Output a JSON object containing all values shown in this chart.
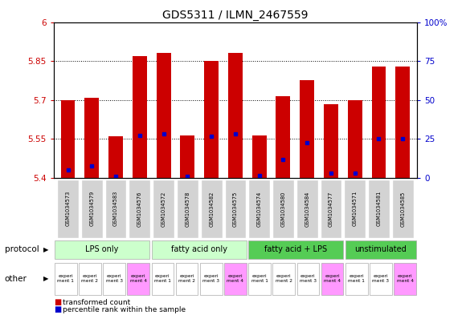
{
  "title": "GDS5311 / ILMN_2467559",
  "samples": [
    "GSM1034573",
    "GSM1034579",
    "GSM1034583",
    "GSM1034576",
    "GSM1034572",
    "GSM1034578",
    "GSM1034582",
    "GSM1034575",
    "GSM1034574",
    "GSM1034580",
    "GSM1034584",
    "GSM1034577",
    "GSM1034571",
    "GSM1034581",
    "GSM1034585"
  ],
  "red_values": [
    5.7,
    5.71,
    5.56,
    5.87,
    5.88,
    5.565,
    5.85,
    5.88,
    5.565,
    5.715,
    5.775,
    5.685,
    5.7,
    5.83,
    5.83
  ],
  "blue_values": [
    5.43,
    5.445,
    5.405,
    5.565,
    5.57,
    5.405,
    5.56,
    5.57,
    5.408,
    5.47,
    5.535,
    5.42,
    5.418,
    5.55,
    5.55
  ],
  "ylim_left": [
    5.4,
    6.0
  ],
  "ylim_right": [
    0,
    100
  ],
  "yticks_left": [
    5.4,
    5.55,
    5.7,
    5.85,
    6.0
  ],
  "yticks_right": [
    0,
    25,
    50,
    75,
    100
  ],
  "ytick_labels_left": [
    "5.4",
    "5.55",
    "5.7",
    "5.85",
    "6"
  ],
  "ytick_labels_right": [
    "0",
    "25",
    "50",
    "75",
    "100%"
  ],
  "groups": [
    {
      "label": "LPS only",
      "indices": [
        0,
        1,
        2,
        3
      ],
      "color": "#ccffcc"
    },
    {
      "label": "fatty acid only",
      "indices": [
        4,
        5,
        6,
        7
      ],
      "color": "#ccffcc"
    },
    {
      "label": "fatty acid + LPS",
      "indices": [
        8,
        9,
        10,
        11
      ],
      "color": "#55cc55"
    },
    {
      "label": "unstimulated",
      "indices": [
        12,
        13,
        14
      ],
      "color": "#55cc55"
    }
  ],
  "experiment_labels": [
    "experi\nment 1",
    "experi\nment 2",
    "experi\nment 3",
    "experi\nment 4",
    "experi\nment 1",
    "experi\nment 2",
    "experi\nment 3",
    "experi\nment 4",
    "experi\nment 1",
    "experi\nment 2",
    "experi\nment 3",
    "experi\nment 4",
    "experi\nment 1",
    "experi\nment 3",
    "experi\nment 4"
  ],
  "experiment_colors": [
    "#ffffff",
    "#ffffff",
    "#ffffff",
    "#ff99ff",
    "#ffffff",
    "#ffffff",
    "#ffffff",
    "#ff99ff",
    "#ffffff",
    "#ffffff",
    "#ffffff",
    "#ff99ff",
    "#ffffff",
    "#ffffff",
    "#ff99ff"
  ],
  "bar_color": "#cc0000",
  "dot_color": "#0000cc",
  "left_tick_color": "#cc0000",
  "right_tick_color": "#0000cc",
  "bar_width": 0.6,
  "legend_red": "transformed count",
  "legend_blue": "percentile rank within the sample",
  "sample_box_color": "#d3d3d3",
  "plot_bg": "#ffffff"
}
